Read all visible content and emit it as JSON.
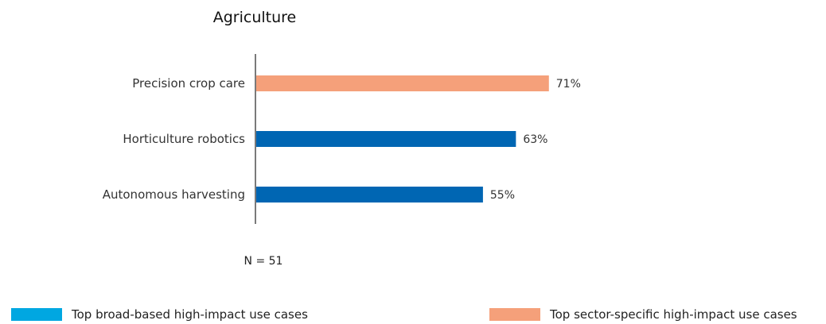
{
  "chart_data": {
    "type": "bar",
    "orientation": "horizontal",
    "title": "Agriculture",
    "categories": [
      "Precision crop care",
      "Horticulture robotics",
      "Autonomous harvesting"
    ],
    "values": [
      71,
      63,
      55
    ],
    "value_labels": [
      "71%",
      "63%",
      "55%"
    ],
    "value_unit": "%",
    "bar_colors": [
      "#f5a07a",
      "#0066b3",
      "#0066b3"
    ],
    "xlim": [
      0,
      100
    ],
    "grid": false,
    "note": "N = 51",
    "legend": {
      "placement": "bottom",
      "entries": [
        {
          "label": "Top broad-based high-impact use cases",
          "color": "#00a7e1"
        },
        {
          "label": "Top sector-specific high-impact use cases",
          "color": "#f5a07a"
        }
      ]
    }
  }
}
